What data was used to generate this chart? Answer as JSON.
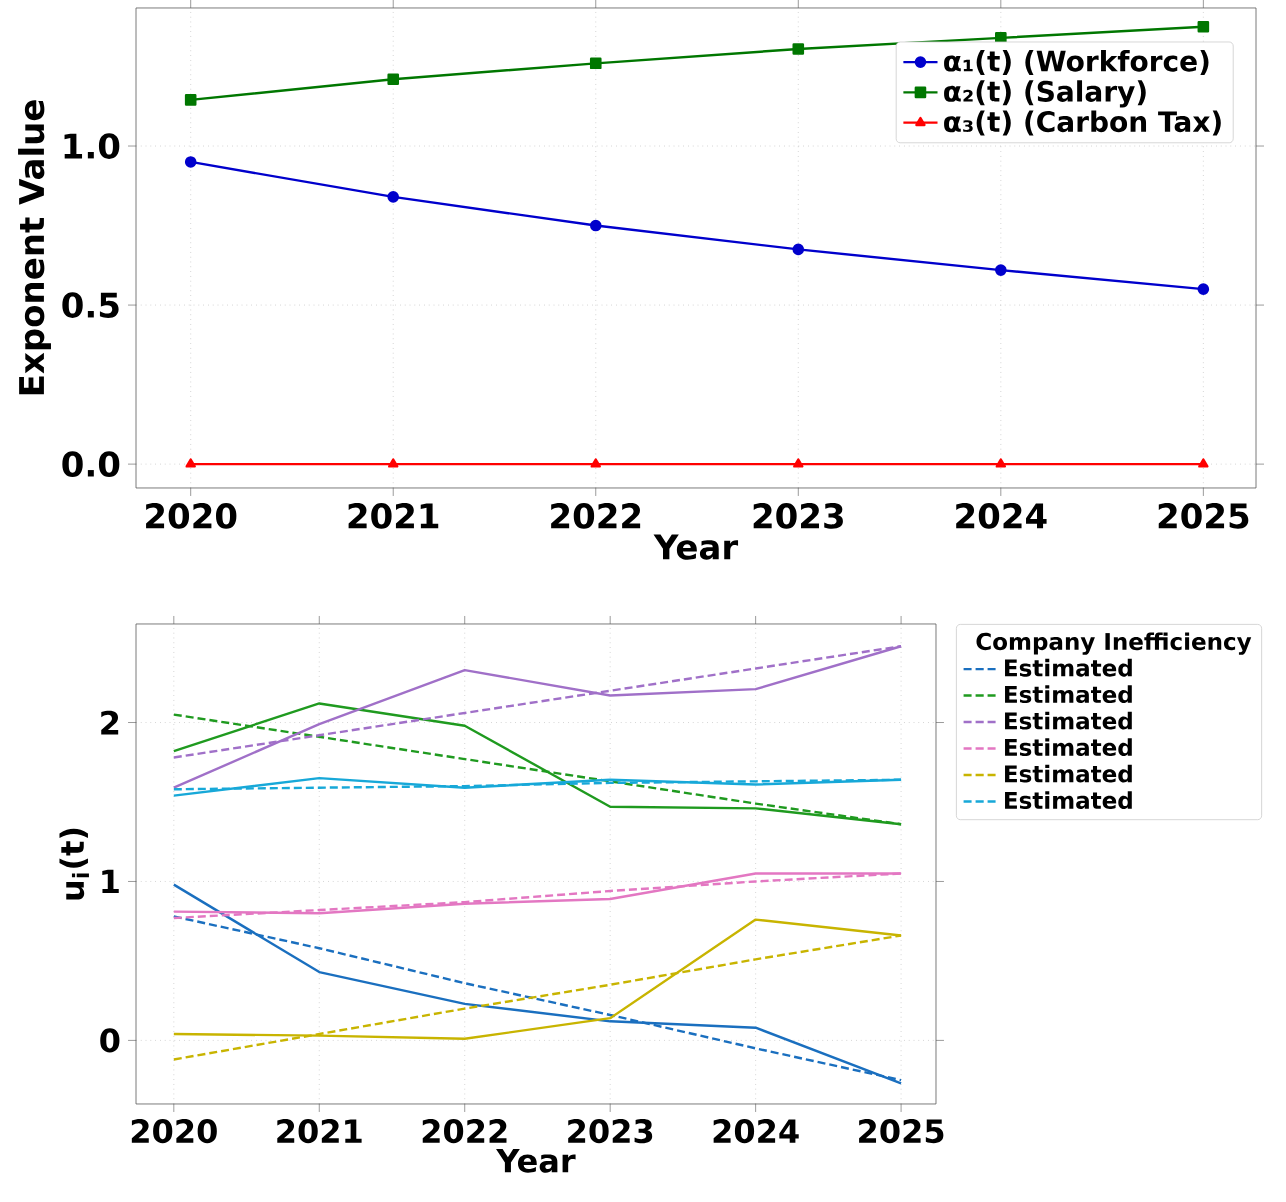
{
  "chart_data": [
    {
      "type": "line",
      "xlabel": "Year",
      "ylabel": "Exponent Value",
      "x": [
        2020,
        2021,
        2022,
        2023,
        2024,
        2025
      ],
      "xlim": [
        2019.73,
        2025.26
      ],
      "ylim": [
        -0.075,
        1.434
      ],
      "xticks": [
        2020,
        2021,
        2022,
        2023,
        2024,
        2025
      ],
      "yticks": [
        {
          "value": 0,
          "label": "0.0"
        },
        {
          "value": 0.5,
          "label": "0.5"
        },
        {
          "value": 1,
          "label": "1.0"
        }
      ],
      "grid": true,
      "legend": "top right",
      "series": [
        {
          "name": "α₁(t) (Workforce)",
          "color": "#0000cc",
          "marker": "circle",
          "values": [
            0.95,
            0.84,
            0.75,
            0.675,
            0.61,
            0.55
          ]
        },
        {
          "name": "α₂(t) (Salary)",
          "color": "#007700",
          "marker": "square",
          "values": [
            1.145,
            1.21,
            1.26,
            1.305,
            1.34,
            1.375
          ]
        },
        {
          "name": "α₃(t) (Carbon Tax)",
          "color": "#ff0000",
          "marker": "triangle",
          "values": [
            0,
            0,
            0,
            0,
            0,
            0
          ]
        }
      ]
    },
    {
      "type": "line",
      "xlabel": "Year",
      "ylabel": "u$_{i}$(t)",
      "legend_title": "Company Inefficiency",
      "x": [
        2020,
        2021,
        2022,
        2023,
        2024,
        2025
      ],
      "xlim": [
        2019.74,
        2025.24
      ],
      "ylim": [
        -0.4,
        2.62
      ],
      "xticks": [
        2020,
        2021,
        2022,
        2023,
        2024,
        2025
      ],
      "yticks": [
        0,
        1,
        2
      ],
      "grid": true,
      "legend": "right",
      "series": [
        {
          "color": "#1a6fbf",
          "line_style": "solid",
          "values": [
            0.98,
            0.43,
            0.23,
            0.12,
            0.08,
            -0.27
          ]
        },
        {
          "name": "Estimated",
          "color": "#1a6fbf",
          "line_style": "dashed",
          "values": [
            0.78,
            0.58,
            0.36,
            0.16,
            -0.05,
            -0.25
          ]
        },
        {
          "color": "#1f9a1f",
          "line_style": "solid",
          "values": [
            1.82,
            2.12,
            1.98,
            1.47,
            1.46,
            1.36
          ]
        },
        {
          "name": "Estimated",
          "color": "#1f9a1f",
          "line_style": "dashed",
          "values": [
            2.05,
            1.91,
            1.77,
            1.63,
            1.49,
            1.36
          ]
        },
        {
          "color": "#a070c8",
          "line_style": "solid",
          "values": [
            1.59,
            1.99,
            2.33,
            2.17,
            2.21,
            2.48
          ]
        },
        {
          "name": "Estimated",
          "color": "#a070c8",
          "line_style": "dashed",
          "values": [
            1.78,
            1.92,
            2.06,
            2.2,
            2.34,
            2.48
          ]
        },
        {
          "color": "#e377c2",
          "line_style": "solid",
          "values": [
            0.81,
            0.8,
            0.86,
            0.89,
            1.05,
            1.05
          ]
        },
        {
          "name": "Estimated",
          "color": "#e377c2",
          "line_style": "dashed",
          "values": [
            0.77,
            0.82,
            0.87,
            0.94,
            1.0,
            1.05
          ]
        },
        {
          "color": "#c8b400",
          "line_style": "solid",
          "values": [
            0.04,
            0.03,
            0.01,
            0.14,
            0.76,
            0.66
          ]
        },
        {
          "name": "Estimated",
          "color": "#c8b400",
          "line_style": "dashed",
          "values": [
            -0.12,
            0.04,
            0.2,
            0.35,
            0.51,
            0.66
          ]
        },
        {
          "color": "#17a8d8",
          "line_style": "solid",
          "values": [
            1.54,
            1.65,
            1.59,
            1.64,
            1.61,
            1.64
          ]
        },
        {
          "name": "Estimated",
          "color": "#17a8d8",
          "line_style": "dashed",
          "values": [
            1.58,
            1.59,
            1.6,
            1.62,
            1.63,
            1.64
          ]
        }
      ]
    }
  ]
}
